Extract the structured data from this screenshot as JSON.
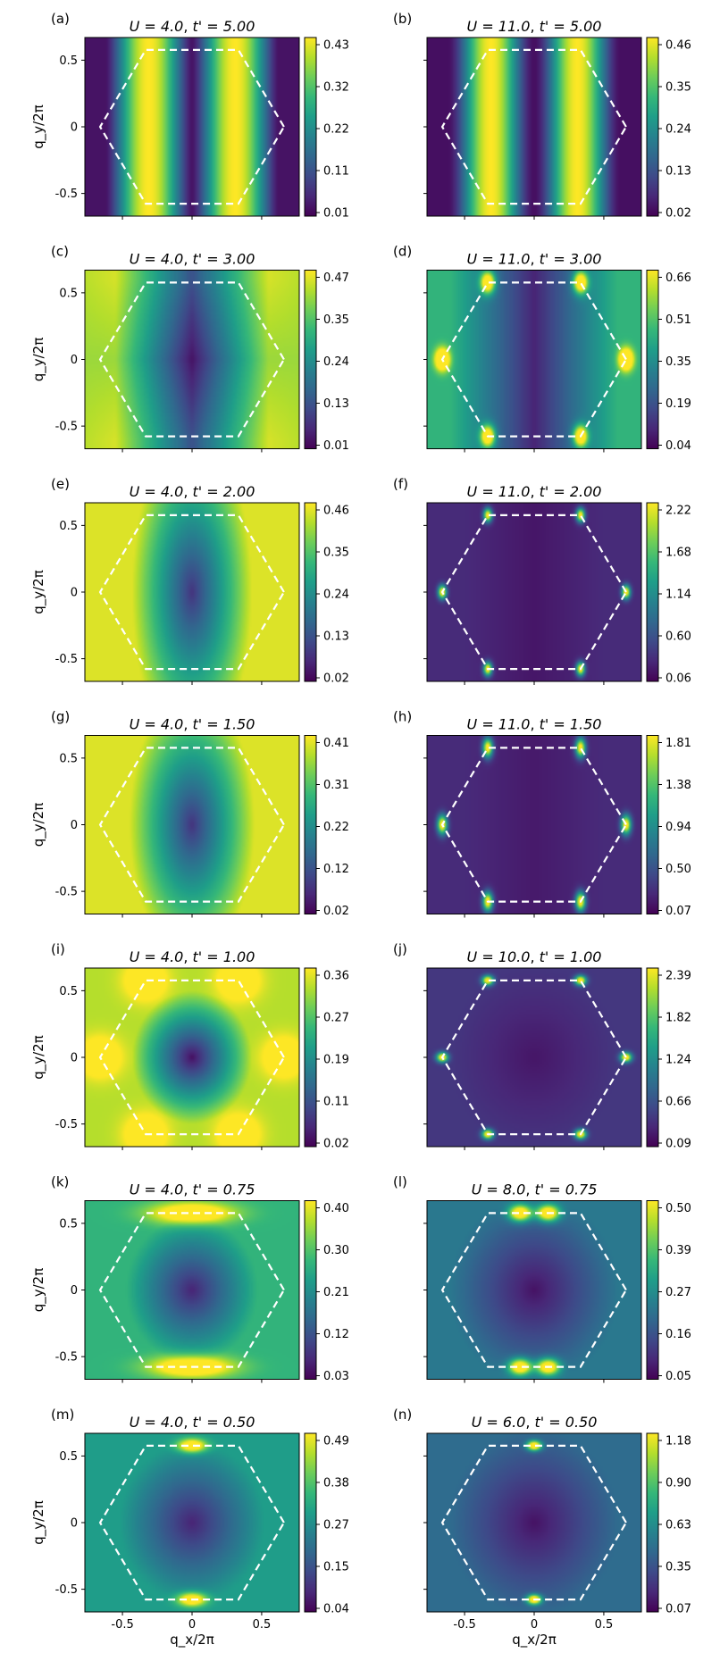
{
  "figure": {
    "xlabel": "q_x/2π",
    "ylabel": "q_y/2π",
    "x_tick_labels": [
      "-0.5",
      "0",
      "0.5"
    ],
    "y_tick_labels": [
      "0.5",
      "0",
      "-0.5"
    ],
    "colormap": "viridis",
    "colormap_stops": [
      "#440154",
      "#482878",
      "#3e4a89",
      "#31688e",
      "#26828e",
      "#1f9e89",
      "#35b779",
      "#6dcd59",
      "#b4de2c",
      "#fde725"
    ],
    "brillouin_zone_color": "#ffffff"
  },
  "chart_data": [
    {
      "label": "(a)",
      "title_U": "U = 4.0",
      "title_t": "t' = 5.00",
      "colorbar_ticks": [
        "0.01",
        "0.11",
        "0.22",
        "0.32",
        "0.43"
      ],
      "type": "heatmap",
      "xlim": [
        -0.77,
        0.77
      ],
      "ylim": [
        -0.67,
        0.67
      ]
    },
    {
      "label": "(b)",
      "title_U": "U = 11.0",
      "title_t": "t' = 5.00",
      "colorbar_ticks": [
        "0.02",
        "0.13",
        "0.24",
        "0.35",
        "0.46"
      ],
      "type": "heatmap",
      "xlim": [
        -0.77,
        0.77
      ],
      "ylim": [
        -0.67,
        0.67
      ]
    },
    {
      "label": "(c)",
      "title_U": "U = 4.0",
      "title_t": "t' = 3.00",
      "colorbar_ticks": [
        "0.01",
        "0.13",
        "0.24",
        "0.35",
        "0.47"
      ],
      "type": "heatmap",
      "xlim": [
        -0.77,
        0.77
      ],
      "ylim": [
        -0.67,
        0.67
      ]
    },
    {
      "label": "(d)",
      "title_U": "U = 11.0",
      "title_t": "t' = 3.00",
      "colorbar_ticks": [
        "0.04",
        "0.19",
        "0.35",
        "0.51",
        "0.66"
      ],
      "type": "heatmap",
      "xlim": [
        -0.77,
        0.77
      ],
      "ylim": [
        -0.67,
        0.67
      ]
    },
    {
      "label": "(e)",
      "title_U": "U = 4.0",
      "title_t": "t' = 2.00",
      "colorbar_ticks": [
        "0.02",
        "0.13",
        "0.24",
        "0.35",
        "0.46"
      ],
      "type": "heatmap",
      "xlim": [
        -0.77,
        0.77
      ],
      "ylim": [
        -0.67,
        0.67
      ]
    },
    {
      "label": "(f)",
      "title_U": "U = 11.0",
      "title_t": "t' = 2.00",
      "colorbar_ticks": [
        "0.06",
        "0.60",
        "1.14",
        "1.68",
        "2.22"
      ],
      "type": "heatmap",
      "xlim": [
        -0.77,
        0.77
      ],
      "ylim": [
        -0.67,
        0.67
      ]
    },
    {
      "label": "(g)",
      "title_U": "U = 4.0",
      "title_t": "t' = 1.50",
      "colorbar_ticks": [
        "0.02",
        "0.12",
        "0.22",
        "0.31",
        "0.41"
      ],
      "type": "heatmap",
      "xlim": [
        -0.77,
        0.77
      ],
      "ylim": [
        -0.67,
        0.67
      ]
    },
    {
      "label": "(h)",
      "title_U": "U = 11.0",
      "title_t": "t' = 1.50",
      "colorbar_ticks": [
        "0.07",
        "0.50",
        "0.94",
        "1.38",
        "1.81"
      ],
      "type": "heatmap",
      "xlim": [
        -0.77,
        0.77
      ],
      "ylim": [
        -0.67,
        0.67
      ]
    },
    {
      "label": "(i)",
      "title_U": "U = 4.0",
      "title_t": "t' = 1.00",
      "colorbar_ticks": [
        "0.02",
        "0.11",
        "0.19",
        "0.27",
        "0.36"
      ],
      "type": "heatmap",
      "xlim": [
        -0.77,
        0.77
      ],
      "ylim": [
        -0.67,
        0.67
      ]
    },
    {
      "label": "(j)",
      "title_U": "U = 10.0",
      "title_t": "t' = 1.00",
      "colorbar_ticks": [
        "0.09",
        "0.66",
        "1.24",
        "1.82",
        "2.39"
      ],
      "type": "heatmap",
      "xlim": [
        -0.77,
        0.77
      ],
      "ylim": [
        -0.67,
        0.67
      ]
    },
    {
      "label": "(k)",
      "title_U": "U = 4.0",
      "title_t": "t' = 0.75",
      "colorbar_ticks": [
        "0.03",
        "0.12",
        "0.21",
        "0.30",
        "0.40"
      ],
      "type": "heatmap",
      "xlim": [
        -0.77,
        0.77
      ],
      "ylim": [
        -0.67,
        0.67
      ]
    },
    {
      "label": "(l)",
      "title_U": "U = 8.0",
      "title_t": "t' = 0.75",
      "colorbar_ticks": [
        "0.05",
        "0.16",
        "0.27",
        "0.39",
        "0.50"
      ],
      "type": "heatmap",
      "xlim": [
        -0.77,
        0.77
      ],
      "ylim": [
        -0.67,
        0.67
      ]
    },
    {
      "label": "(m)",
      "title_U": "U = 4.0",
      "title_t": "t' = 0.50",
      "colorbar_ticks": [
        "0.04",
        "0.15",
        "0.27",
        "0.38",
        "0.49"
      ],
      "type": "heatmap",
      "xlim": [
        -0.77,
        0.77
      ],
      "ylim": [
        -0.67,
        0.67
      ]
    },
    {
      "label": "(n)",
      "title_U": "U = 6.0",
      "title_t": "t' = 0.50",
      "colorbar_ticks": [
        "0.07",
        "0.35",
        "0.63",
        "0.90",
        "1.18"
      ],
      "type": "heatmap",
      "xlim": [
        -0.77,
        0.77
      ],
      "ylim": [
        -0.67,
        0.67
      ]
    }
  ]
}
